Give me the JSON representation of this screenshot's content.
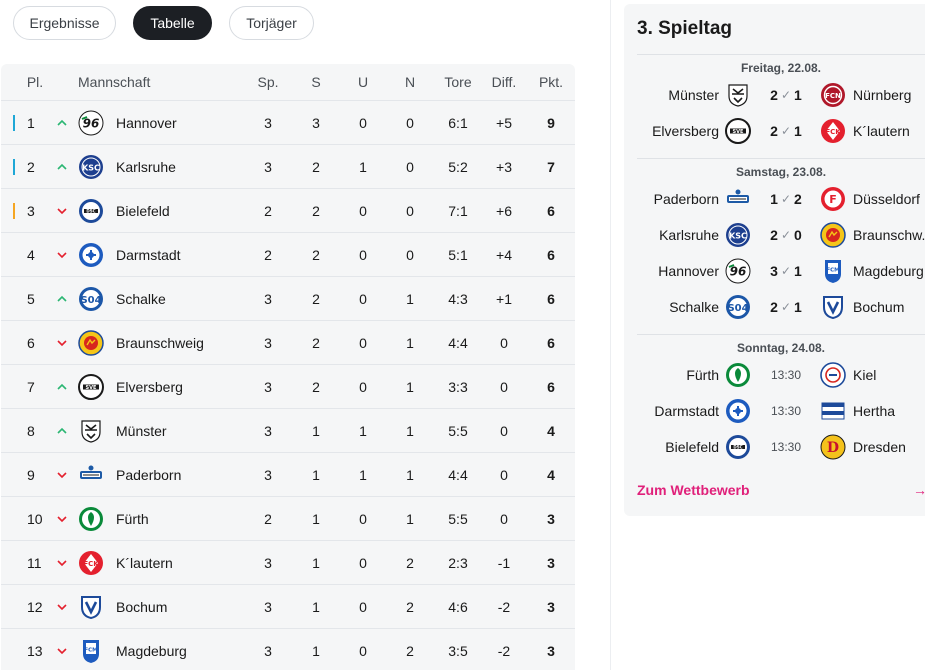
{
  "tabs": [
    {
      "label": "Ergebnisse",
      "active": false
    },
    {
      "label": "Tabelle",
      "active": true
    },
    {
      "label": "Torjäger",
      "active": false
    }
  ],
  "table": {
    "headers": {
      "pl": "Pl.",
      "team": "Mannschaft",
      "sp": "Sp.",
      "s": "S",
      "u": "U",
      "n": "N",
      "tore": "Tore",
      "diff": "Diff.",
      "pkt": "Pkt."
    },
    "rows": [
      {
        "rank": "1",
        "trend": "up",
        "marker": "#1ea7d6",
        "team": "Hannover",
        "crest": "hannover-crest-icon",
        "sp": "3",
        "s": "3",
        "u": "0",
        "n": "0",
        "tore": "6:1",
        "diff": "+5",
        "pkt": "9"
      },
      {
        "rank": "2",
        "trend": "up",
        "marker": "#1ea7d6",
        "team": "Karlsruhe",
        "crest": "karlsruhe-crest-icon",
        "sp": "3",
        "s": "2",
        "u": "1",
        "n": "0",
        "tore": "5:2",
        "diff": "+3",
        "pkt": "7"
      },
      {
        "rank": "3",
        "trend": "down",
        "marker": "#f5a623",
        "team": "Bielefeld",
        "crest": "bielefeld-crest-icon",
        "sp": "2",
        "s": "2",
        "u": "0",
        "n": "0",
        "tore": "7:1",
        "diff": "+6",
        "pkt": "6"
      },
      {
        "rank": "4",
        "trend": "down",
        "marker": "",
        "team": "Darmstadt",
        "crest": "darmstadt-crest-icon",
        "sp": "2",
        "s": "2",
        "u": "0",
        "n": "0",
        "tore": "5:1",
        "diff": "+4",
        "pkt": "6"
      },
      {
        "rank": "5",
        "trend": "up",
        "marker": "",
        "team": "Schalke",
        "crest": "schalke-crest-icon",
        "sp": "3",
        "s": "2",
        "u": "0",
        "n": "1",
        "tore": "4:3",
        "diff": "+1",
        "pkt": "6"
      },
      {
        "rank": "6",
        "trend": "down",
        "marker": "",
        "team": "Braunschweig",
        "crest": "braunschweig-crest-icon",
        "sp": "3",
        "s": "2",
        "u": "0",
        "n": "1",
        "tore": "4:4",
        "diff": "0",
        "pkt": "6"
      },
      {
        "rank": "7",
        "trend": "up",
        "marker": "",
        "team": "Elversberg",
        "crest": "elversberg-crest-icon",
        "sp": "3",
        "s": "2",
        "u": "0",
        "n": "1",
        "tore": "3:3",
        "diff": "0",
        "pkt": "6"
      },
      {
        "rank": "8",
        "trend": "up",
        "marker": "",
        "team": "Münster",
        "crest": "muenster-crest-icon",
        "sp": "3",
        "s": "1",
        "u": "1",
        "n": "1",
        "tore": "5:5",
        "diff": "0",
        "pkt": "4"
      },
      {
        "rank": "9",
        "trend": "down",
        "marker": "",
        "team": "Paderborn",
        "crest": "paderborn-crest-icon",
        "sp": "3",
        "s": "1",
        "u": "1",
        "n": "1",
        "tore": "4:4",
        "diff": "0",
        "pkt": "4"
      },
      {
        "rank": "10",
        "trend": "down",
        "marker": "",
        "team": "Fürth",
        "crest": "fuerth-crest-icon",
        "sp": "2",
        "s": "1",
        "u": "0",
        "n": "1",
        "tore": "5:5",
        "diff": "0",
        "pkt": "3"
      },
      {
        "rank": "11",
        "trend": "down",
        "marker": "",
        "team": "K´lautern",
        "crest": "kaiserslautern-crest-icon",
        "sp": "3",
        "s": "1",
        "u": "0",
        "n": "2",
        "tore": "2:3",
        "diff": "-1",
        "pkt": "3"
      },
      {
        "rank": "12",
        "trend": "down",
        "marker": "",
        "team": "Bochum",
        "crest": "bochum-crest-icon",
        "sp": "3",
        "s": "1",
        "u": "0",
        "n": "2",
        "tore": "4:6",
        "diff": "-2",
        "pkt": "3"
      },
      {
        "rank": "13",
        "trend": "down",
        "marker": "",
        "team": "Magdeburg",
        "crest": "magdeburg-crest-icon",
        "sp": "3",
        "s": "1",
        "u": "0",
        "n": "2",
        "tore": "3:5",
        "diff": "-2",
        "pkt": "3"
      }
    ]
  },
  "colors": {
    "trend_up": "#2bb673",
    "trend_down": "#e4202e",
    "accent": "#e0207a",
    "tab_active_bg": "#1c1f24"
  },
  "fixtures": {
    "title": "3. Spieltag",
    "days": [
      {
        "date": "Freitag, 22.08.",
        "matches": [
          {
            "home": "Münster",
            "home_crest": "muenster-crest-icon",
            "home_score": "2",
            "away_score": "1",
            "away": "Nürnberg",
            "away_crest": "nuernberg-crest-icon"
          },
          {
            "home": "Elversberg",
            "home_crest": "elversberg-crest-icon",
            "home_score": "2",
            "away_score": "1",
            "away": "K´lautern",
            "away_crest": "kaiserslautern-crest-icon"
          }
        ]
      },
      {
        "date": "Samstag, 23.08.",
        "matches": [
          {
            "home": "Paderborn",
            "home_crest": "paderborn-crest-icon",
            "home_score": "1",
            "away_score": "2",
            "away": "Düsseldorf",
            "away_crest": "duesseldorf-crest-icon"
          },
          {
            "home": "Karlsruhe",
            "home_crest": "karlsruhe-crest-icon",
            "home_score": "2",
            "away_score": "0",
            "away": "Braunschw.",
            "away_crest": "braunschweig-crest-icon"
          },
          {
            "home": "Hannover",
            "home_crest": "hannover-crest-icon",
            "home_score": "3",
            "away_score": "1",
            "away": "Magdeburg",
            "away_crest": "magdeburg-crest-icon"
          },
          {
            "home": "Schalke",
            "home_crest": "schalke-crest-icon",
            "home_score": "2",
            "away_score": "1",
            "away": "Bochum",
            "away_crest": "bochum-crest-icon"
          }
        ]
      },
      {
        "date": "Sonntag, 24.08.",
        "matches": [
          {
            "home": "Fürth",
            "home_crest": "fuerth-crest-icon",
            "time": "13:30",
            "away": "Kiel",
            "away_crest": "kiel-crest-icon"
          },
          {
            "home": "Darmstadt",
            "home_crest": "darmstadt-crest-icon",
            "time": "13:30",
            "away": "Hertha",
            "away_crest": "hertha-crest-icon"
          },
          {
            "home": "Bielefeld",
            "home_crest": "bielefeld-crest-icon",
            "time": "13:30",
            "away": "Dresden",
            "away_crest": "dresden-crest-icon"
          }
        ]
      }
    ],
    "link_label": "Zum Wettbewerb",
    "link_arrow": "→"
  }
}
